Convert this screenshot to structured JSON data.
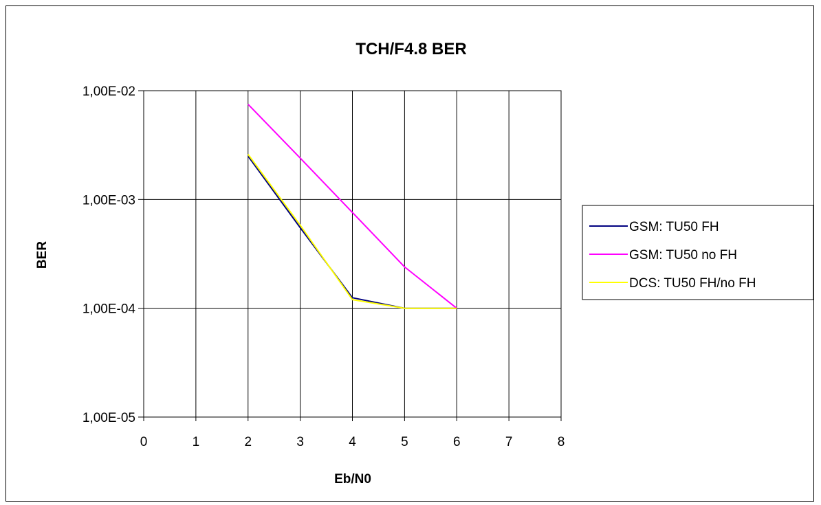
{
  "chart_data": {
    "type": "line",
    "title": "TCH/F4.8  BER",
    "xlabel": "Eb/N0",
    "ylabel": "BER",
    "xlim": [
      0,
      8
    ],
    "ylim": [
      1e-05,
      0.01
    ],
    "yscale": "log",
    "grid": true,
    "legend_position": "right",
    "x_ticks": [
      "0",
      "1",
      "2",
      "3",
      "4",
      "5",
      "6",
      "7",
      "8"
    ],
    "y_ticks": [
      "1,00E-02",
      "1,00E-03",
      "1,00E-04",
      "1,00E-05"
    ],
    "series": [
      {
        "name": "GSM: TU50 FH",
        "color": "#000080",
        "x": [
          2,
          3,
          4,
          5,
          6
        ],
        "y": [
          0.0025,
          0.00055,
          0.000125,
          0.0001,
          0.0001
        ]
      },
      {
        "name": "GSM: TU50 no FH",
        "color": "#ff00ff",
        "x": [
          2,
          3,
          4,
          5,
          6
        ],
        "y": [
          0.0075,
          0.0024,
          0.00076,
          0.00024,
          0.0001
        ]
      },
      {
        "name": "DCS: TU50 FH/no FH",
        "color": "#ffff00",
        "x": [
          2,
          3,
          4,
          5,
          6
        ],
        "y": [
          0.0026,
          0.00058,
          0.00012,
          0.0001,
          0.0001
        ]
      }
    ]
  }
}
